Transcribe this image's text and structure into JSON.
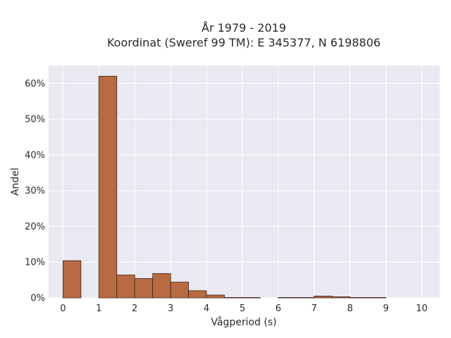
{
  "chart_data": {
    "type": "bar",
    "title_lines": [
      "År 1979 - 2019",
      "Koordinat (Sweref 99 TM): E 345377, N 6198806"
    ],
    "xlabel": "Vågperiod (s)",
    "ylabel": "Andel",
    "bin_width": 0.5,
    "bins": [
      {
        "x": 0.0,
        "value": 0.104
      },
      {
        "x": 0.5,
        "value": 0.0
      },
      {
        "x": 1.0,
        "value": 0.62
      },
      {
        "x": 1.5,
        "value": 0.064
      },
      {
        "x": 2.0,
        "value": 0.054
      },
      {
        "x": 2.5,
        "value": 0.068
      },
      {
        "x": 3.0,
        "value": 0.044
      },
      {
        "x": 3.5,
        "value": 0.02
      },
      {
        "x": 4.0,
        "value": 0.008
      },
      {
        "x": 4.5,
        "value": 0.001
      },
      {
        "x": 5.0,
        "value": 0.001
      },
      {
        "x": 5.5,
        "value": 0.0
      },
      {
        "x": 6.0,
        "value": 0.001
      },
      {
        "x": 6.5,
        "value": 0.001
      },
      {
        "x": 7.0,
        "value": 0.005
      },
      {
        "x": 7.5,
        "value": 0.003
      },
      {
        "x": 8.0,
        "value": 0.001
      },
      {
        "x": 8.5,
        "value": 0.001
      }
    ],
    "xlim": [
      -0.4,
      10.5
    ],
    "ylim": [
      0,
      0.65
    ],
    "xticks": [
      0,
      1,
      2,
      3,
      4,
      5,
      6,
      7,
      8,
      9,
      10
    ],
    "yticks": [
      0,
      0.1,
      0.2,
      0.3,
      0.4,
      0.5,
      0.6
    ],
    "ytick_labels": [
      "0%",
      "10%",
      "20%",
      "30%",
      "40%",
      "50%",
      "60%"
    ],
    "grid": true,
    "bar_color": "#b86a42",
    "bar_edge_color": "#3a2418",
    "plot_bg": "#e9e9f2",
    "grid_color": "#ffffff"
  }
}
